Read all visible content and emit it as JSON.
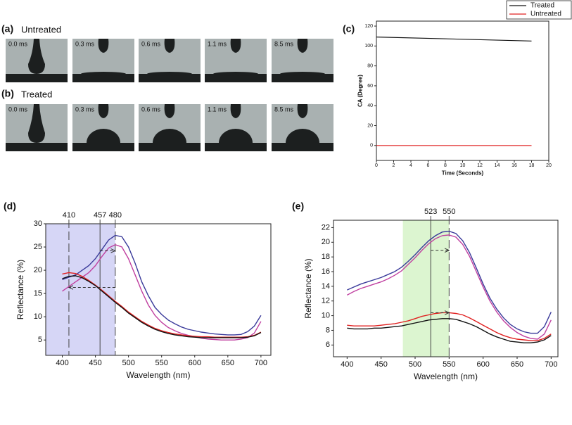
{
  "photos": {
    "rows": [
      {
        "label": "(a)",
        "title": "Untreated",
        "frames": [
          "0.0 ms",
          "0.3 ms",
          "0.6 ms",
          "1.1 ms",
          "8.5 ms"
        ]
      },
      {
        "label": "(b)",
        "title": "Treated",
        "frames": [
          "0.0 ms",
          "0.3 ms",
          "0.6 ms",
          "1.1 ms",
          "8.5 ms"
        ]
      }
    ]
  },
  "chart_data": [
    {
      "type": "line",
      "panel_label": "(c)",
      "x_label": "Time (Seconds)",
      "y_label": "CA (Degree)",
      "x": [
        0,
        18
      ],
      "series": [
        {
          "name": "Treated",
          "color": "#111111",
          "values": [
            109,
            105
          ]
        },
        {
          "name": "Untreated",
          "color": "#e02020",
          "values": [
            0,
            0
          ]
        }
      ],
      "xlim": [
        0,
        20
      ],
      "xticks": [
        0,
        2,
        4,
        6,
        8,
        10,
        12,
        14,
        16,
        18,
        20
      ],
      "ylim": [
        -15,
        125
      ],
      "yticks": [
        0,
        20,
        40,
        60,
        80,
        100,
        120
      ],
      "legend": "top-right"
    },
    {
      "type": "line",
      "panel_label": "(d)",
      "x_label": "Wavelength (nm)",
      "y_label": "Reflectance (%)",
      "x": [
        400,
        410,
        420,
        430,
        440,
        450,
        460,
        470,
        480,
        490,
        500,
        510,
        520,
        530,
        540,
        550,
        560,
        570,
        580,
        590,
        600,
        610,
        620,
        630,
        640,
        650,
        660,
        670,
        680,
        690,
        700
      ],
      "series": [
        {
          "color": "#3a3a9a",
          "values": [
            18.0,
            18.5,
            19,
            20,
            21,
            22.5,
            24.5,
            26.5,
            27.5,
            27.2,
            25,
            21.5,
            17.5,
            14.5,
            12,
            10.5,
            9.3,
            8.5,
            7.8,
            7.3,
            7,
            6.7,
            6.5,
            6.3,
            6.2,
            6.1,
            6.1,
            6.2,
            6.8,
            8,
            10.3
          ]
        },
        {
          "color": "#c040a0",
          "values": [
            15.5,
            16.5,
            17.5,
            18.5,
            19.5,
            21,
            23,
            24.8,
            25.5,
            25,
            22.5,
            19,
            15.5,
            12.5,
            10.3,
            8.8,
            7.7,
            7,
            6.4,
            6,
            5.7,
            5.4,
            5.2,
            5.1,
            5,
            5,
            5,
            5.2,
            5.5,
            6.5,
            9
          ]
        },
        {
          "color": "#e02020",
          "values": [
            19.2,
            19.5,
            19.3,
            18.7,
            17.8,
            16.8,
            15.7,
            14.5,
            13.3,
            12.2,
            11,
            10,
            9,
            8.2,
            7.5,
            7,
            6.6,
            6.3,
            6.1,
            5.9,
            5.8,
            5.7,
            5.7,
            5.6,
            5.6,
            5.6,
            5.6,
            5.6,
            5.7,
            6,
            6.7
          ]
        },
        {
          "color": "#111111",
          "values": [
            18.2,
            18.7,
            18.8,
            18.4,
            17.6,
            16.7,
            15.5,
            14.3,
            13.1,
            12,
            10.8,
            9.8,
            8.8,
            8,
            7.3,
            6.8,
            6.4,
            6.1,
            5.9,
            5.7,
            5.6,
            5.5,
            5.5,
            5.5,
            5.5,
            5.5,
            5.5,
            5.5,
            5.6,
            5.9,
            6.6
          ]
        }
      ],
      "xlim": [
        375,
        715
      ],
      "xticks": [
        400,
        450,
        500,
        550,
        600,
        650,
        700
      ],
      "ylim": [
        1.7,
        30
      ],
      "yticks": [
        5,
        10,
        15,
        20,
        25,
        30
      ],
      "span": [
        375,
        480
      ],
      "span_color": "#d6d6f6",
      "vlines": [
        {
          "value": 410,
          "style": "dashed"
        },
        {
          "value": 457,
          "style": "solid"
        },
        {
          "value": 480,
          "style": "dashed"
        }
      ],
      "arrows": [
        {
          "from": 457,
          "to": 480,
          "y": 24.2
        },
        {
          "from": 480,
          "to": 410,
          "y": 16.3
        }
      ]
    },
    {
      "type": "line",
      "panel_label": "(e)",
      "x_label": "Wavelength (nm)",
      "y_label": "Reflectance (%)",
      "x": [
        400,
        410,
        420,
        430,
        440,
        450,
        460,
        470,
        480,
        490,
        500,
        510,
        520,
        530,
        540,
        550,
        560,
        570,
        580,
        590,
        600,
        610,
        620,
        630,
        640,
        650,
        660,
        670,
        680,
        690,
        700
      ],
      "series": [
        {
          "color": "#3a3a9a",
          "values": [
            13.5,
            13.9,
            14.3,
            14.6,
            14.9,
            15.2,
            15.6,
            16,
            16.6,
            17.4,
            18.3,
            19.3,
            20.2,
            20.9,
            21.4,
            21.5,
            21.2,
            20.2,
            18.6,
            16.5,
            14.3,
            12.4,
            10.9,
            9.7,
            8.8,
            8.2,
            7.8,
            7.6,
            7.6,
            8.5,
            10.5
          ]
        },
        {
          "color": "#c040a0",
          "values": [
            12.8,
            13.3,
            13.7,
            14,
            14.3,
            14.6,
            15,
            15.5,
            16.1,
            17,
            17.9,
            18.9,
            19.8,
            20.5,
            20.9,
            21,
            20.7,
            19.7,
            18.1,
            16,
            13.9,
            12,
            10.5,
            9.3,
            8.4,
            7.7,
            7.2,
            6.9,
            6.8,
            7.5,
            9.4
          ]
        },
        {
          "color": "#e02020",
          "values": [
            8.7,
            8.6,
            8.6,
            8.6,
            8.6,
            8.7,
            8.8,
            8.9,
            9.1,
            9.3,
            9.6,
            9.9,
            10.1,
            10.3,
            10.4,
            10.4,
            10.3,
            10.1,
            9.7,
            9.2,
            8.7,
            8.2,
            7.7,
            7.3,
            7,
            6.8,
            6.7,
            6.6,
            6.6,
            6.9,
            7.5
          ]
        },
        {
          "color": "#111111",
          "values": [
            8.3,
            8.2,
            8.2,
            8.2,
            8.3,
            8.3,
            8.4,
            8.5,
            8.6,
            8.8,
            9,
            9.2,
            9.4,
            9.5,
            9.6,
            9.6,
            9.5,
            9.2,
            8.9,
            8.5,
            8.0,
            7.5,
            7.1,
            6.8,
            6.5,
            6.4,
            6.3,
            6.3,
            6.4,
            6.7,
            7.3
          ]
        }
      ],
      "xlim": [
        380,
        710
      ],
      "xticks": [
        400,
        450,
        500,
        550,
        600,
        650,
        700
      ],
      "ylim": [
        4.4,
        23
      ],
      "yticks": [
        6,
        8,
        10,
        12,
        14,
        16,
        18,
        20,
        22
      ],
      "span": [
        482,
        550
      ],
      "span_color": "#dcf5d0",
      "vlines": [
        {
          "value": 523,
          "style": "solid"
        },
        {
          "value": 550,
          "style": "dashed"
        }
      ],
      "arrows": [
        {
          "from": 523,
          "to": 550,
          "y": 18.9
        },
        {
          "from": 523,
          "to": 550,
          "y": 10.4
        }
      ]
    }
  ]
}
